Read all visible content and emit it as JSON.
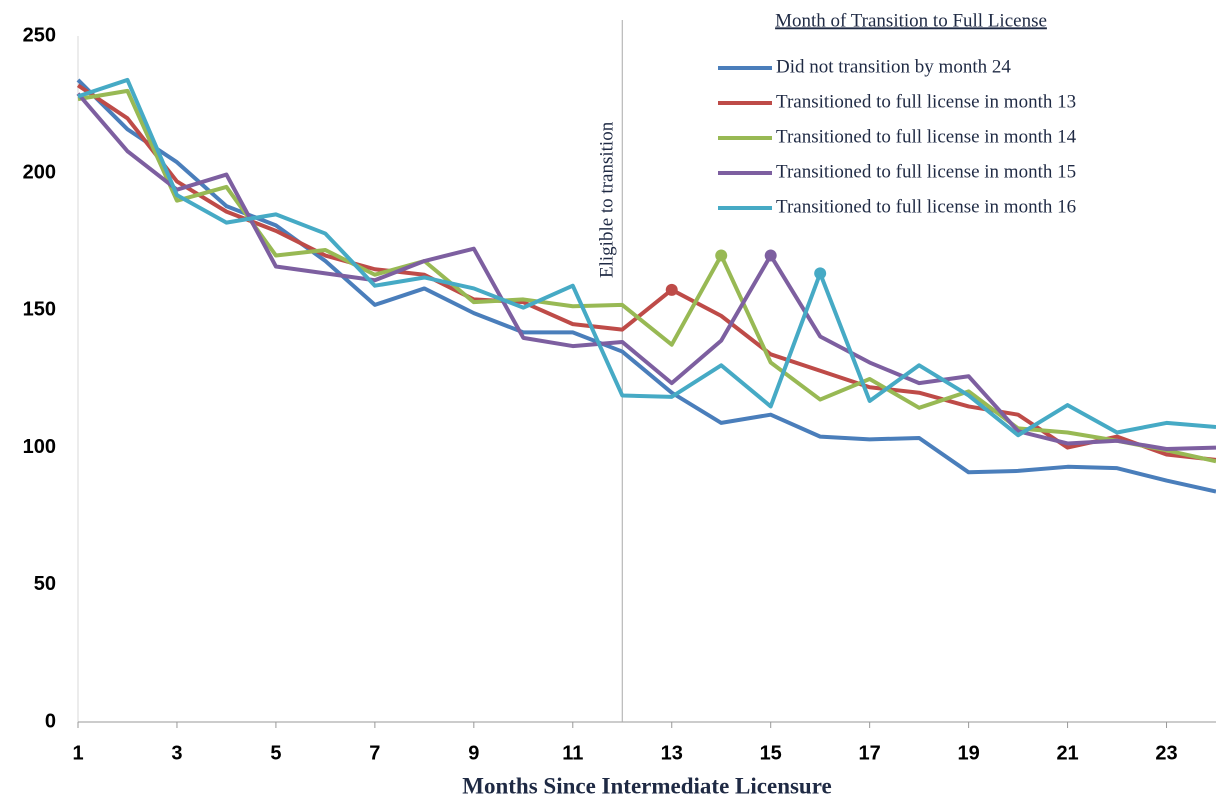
{
  "chart_data": {
    "type": "line",
    "x_label": "Months Since Intermediate Licensure",
    "legend_title": "Month of Transition to Full License",
    "legend_position": "upper right",
    "annotation": {
      "text": "Eligible to transition",
      "x": 12
    },
    "x": [
      1,
      2,
      3,
      4,
      5,
      6,
      7,
      8,
      9,
      10,
      11,
      12,
      13,
      14,
      15,
      16,
      17,
      18,
      19,
      20,
      21,
      22,
      23,
      24
    ],
    "xlim": [
      1,
      24
    ],
    "xticks": [
      1,
      3,
      5,
      7,
      9,
      11,
      13,
      15,
      17,
      19,
      21,
      23
    ],
    "ylim": [
      0,
      250
    ],
    "yticks": [
      0,
      50,
      100,
      150,
      200,
      250
    ],
    "grid": false,
    "series": [
      {
        "name": "Did not transition by month 24",
        "color": "#4a7ebb",
        "values": [
          234,
          216,
          204,
          188,
          181,
          168,
          152,
          158,
          149,
          142,
          142,
          135,
          120,
          109,
          112,
          104,
          103,
          103.5,
          91,
          91.5,
          93,
          92.5,
          88,
          84
        ]
      },
      {
        "name": "Transitioned to full license in month 13",
        "color": "#be4b48",
        "highlight_x": 13,
        "values": [
          232,
          220,
          197,
          186,
          179,
          170,
          165,
          163,
          154,
          153,
          145,
          143,
          157.5,
          148,
          134,
          128,
          122,
          120,
          115,
          112,
          100,
          104,
          97.5,
          95.5
        ]
      },
      {
        "name": "Transitioned to full license in month 14",
        "color": "#98b954",
        "highlight_x": 14,
        "values": [
          227,
          230,
          190,
          195,
          170,
          172,
          163,
          168,
          153,
          154,
          151.5,
          152,
          137.5,
          170,
          131,
          117.5,
          125,
          114.5,
          120.5,
          107,
          105.5,
          102.5,
          99,
          95
        ]
      },
      {
        "name": "Transitioned to full license in month 15",
        "color": "#7d5fa0",
        "highlight_x": 15,
        "values": [
          229,
          208,
          194,
          199.5,
          166,
          163.5,
          161,
          168,
          172.5,
          140,
          137,
          138.5,
          123.5,
          139,
          170,
          140.5,
          131,
          123.5,
          126,
          106,
          101.5,
          102.5,
          99.5,
          100
        ]
      },
      {
        "name": "Transitioned to full license in month 16",
        "color": "#46aac5",
        "highlight_x": 16,
        "values": [
          228,
          234,
          192,
          182,
          185,
          178,
          159,
          162,
          158,
          151,
          159,
          119,
          118.5,
          130,
          115,
          163.5,
          117,
          130,
          119,
          104.5,
          115.5,
          105.5,
          109,
          107.5
        ]
      }
    ]
  }
}
